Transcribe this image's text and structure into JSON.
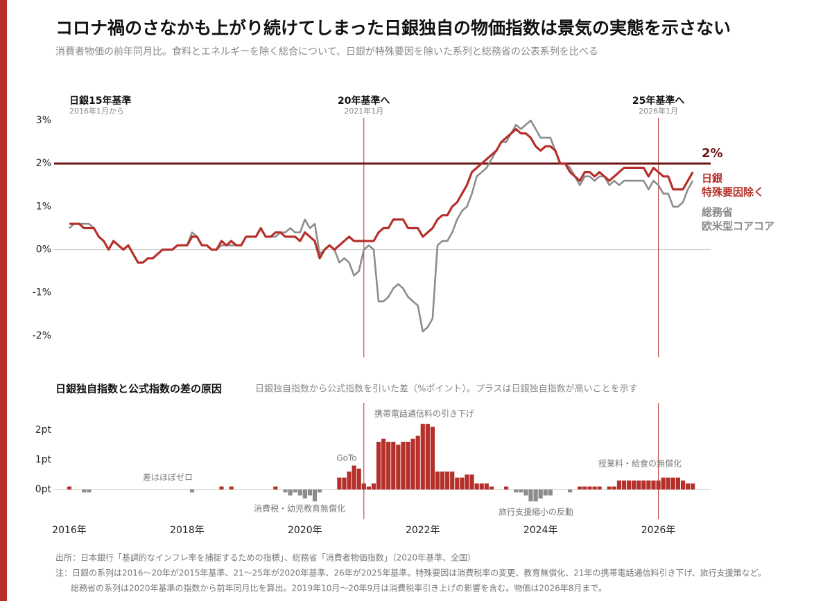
{
  "header": {
    "title": "コロナ禍のさなかも上がり続けてしまった日銀独自の物価指数は景気の実態を示さない",
    "subtitle": "消費者物価の前年同月比。食料とエネルギーを除く総合について、日銀が特殊要因を除いた系列と総務省の公表系列を比べる"
  },
  "chart_data": [
    {
      "type": "line",
      "ylim": [
        -2.5,
        3
      ],
      "yticks": [
        {
          "value": 3,
          "label": "3%"
        },
        {
          "value": 2,
          "label": "2%"
        },
        {
          "value": 1,
          "label": "1%"
        },
        {
          "value": 0,
          "label": "0%"
        },
        {
          "value": -1,
          "label": "-1%"
        },
        {
          "value": -2,
          "label": "-2%"
        }
      ],
      "hline": {
        "value": 2,
        "label": "2%",
        "color": "#6e1515"
      },
      "periods": [
        {
          "label": "日銀15年基準",
          "sub": "2016年1月から",
          "at": 0,
          "line": false
        },
        {
          "label": "20年基準へ",
          "sub": "2021年1月",
          "at": 60,
          "line": true
        },
        {
          "label": "25年基準へ",
          "sub": "2026年1月",
          "at": 120,
          "line": true
        }
      ],
      "series": [
        {
          "name": [
            "総務省",
            "欧米型コアコア"
          ],
          "color": "#8c8c8c",
          "values": [
            0.5,
            0.6,
            0.6,
            0.6,
            0.6,
            0.5,
            0.3,
            0.2,
            0.0,
            0.2,
            0.1,
            0.0,
            0.1,
            -0.1,
            -0.3,
            -0.3,
            -0.2,
            -0.2,
            -0.1,
            0.0,
            0.0,
            0.0,
            0.1,
            0.1,
            0.1,
            0.4,
            0.3,
            0.1,
            0.1,
            0.0,
            0.0,
            0.1,
            0.1,
            0.1,
            0.1,
            0.1,
            0.3,
            0.3,
            0.3,
            0.5,
            0.3,
            0.3,
            0.3,
            0.4,
            0.4,
            0.5,
            0.4,
            0.4,
            0.7,
            0.5,
            0.6,
            -0.1,
            0.0,
            0.1,
            0.0,
            -0.3,
            -0.2,
            -0.3,
            -0.6,
            -0.5,
            0.0,
            0.1,
            0.0,
            -1.2,
            -1.2,
            -1.1,
            -0.9,
            -0.8,
            -0.9,
            -1.1,
            -1.2,
            -1.3,
            -1.9,
            -1.8,
            -1.6,
            0.1,
            0.2,
            0.2,
            0.4,
            0.7,
            0.9,
            1.0,
            1.3,
            1.7,
            1.8,
            1.9,
            2.1,
            2.3,
            2.5,
            2.5,
            2.7,
            2.9,
            2.8,
            2.9,
            3.0,
            2.8,
            2.6,
            2.6,
            2.6,
            2.3,
            2.0,
            2.0,
            1.9,
            1.7,
            1.5,
            1.7,
            1.7,
            1.6,
            1.7,
            1.7,
            1.5,
            1.6,
            1.5,
            1.6,
            1.6,
            1.6,
            1.6,
            1.6,
            1.4,
            1.6,
            1.5,
            1.3,
            1.3,
            1.0,
            1.0,
            1.1,
            1.4,
            1.6
          ]
        },
        {
          "name": [
            "日銀",
            "特殊要因除く"
          ],
          "color": "#b5302a",
          "values": [
            0.6,
            0.6,
            0.6,
            0.5,
            0.5,
            0.5,
            0.3,
            0.2,
            0.0,
            0.2,
            0.1,
            0.0,
            0.1,
            -0.1,
            -0.3,
            -0.3,
            -0.2,
            -0.2,
            -0.1,
            0.0,
            0.0,
            0.0,
            0.1,
            0.1,
            0.1,
            0.3,
            0.3,
            0.1,
            0.1,
            0.0,
            0.0,
            0.2,
            0.1,
            0.2,
            0.1,
            0.1,
            0.3,
            0.3,
            0.3,
            0.5,
            0.3,
            0.3,
            0.4,
            0.4,
            0.3,
            0.3,
            0.3,
            0.2,
            0.4,
            0.3,
            0.2,
            -0.2,
            0.0,
            0.1,
            0.0,
            0.1,
            0.2,
            0.3,
            0.2,
            0.2,
            0.2,
            0.2,
            0.2,
            0.4,
            0.5,
            0.5,
            0.7,
            0.7,
            0.7,
            0.5,
            0.5,
            0.5,
            0.3,
            0.4,
            0.5,
            0.7,
            0.8,
            0.8,
            1.0,
            1.1,
            1.3,
            1.5,
            1.8,
            1.9,
            2.0,
            2.1,
            2.2,
            2.3,
            2.5,
            2.6,
            2.7,
            2.8,
            2.7,
            2.7,
            2.6,
            2.4,
            2.3,
            2.4,
            2.4,
            2.3,
            2.0,
            2.0,
            1.8,
            1.7,
            1.6,
            1.8,
            1.8,
            1.7,
            1.8,
            1.7,
            1.6,
            1.7,
            1.8,
            1.9,
            1.9,
            1.9,
            1.9,
            1.9,
            1.7,
            1.9,
            1.8,
            1.7,
            1.7,
            1.4,
            1.4,
            1.4,
            1.6,
            1.8
          ]
        }
      ]
    },
    {
      "type": "bar",
      "title": "日銀独自指数と公式指数の差の原因",
      "subtitle": "日銀独自指数から公式指数を引いた差（%ポイント）。プラスは日銀独自指数が高いことを示す",
      "ylim": [
        -1,
        2.9
      ],
      "yticks": [
        {
          "value": 0,
          "label": "0pt"
        },
        {
          "value": 1,
          "label": "1pt"
        },
        {
          "value": 2,
          "label": "2pt"
        }
      ],
      "vlines": [
        60,
        120
      ],
      "positive_color": "#b5302a",
      "negative_color": "#8c8c8c",
      "categories": [
        "2016年",
        null,
        null,
        null,
        null,
        null,
        null,
        null,
        null,
        null,
        null,
        null,
        null,
        null,
        null,
        null,
        null,
        null,
        null,
        null,
        null,
        null,
        null,
        null,
        "2018年",
        null,
        null,
        null,
        null,
        null,
        null,
        null,
        null,
        null,
        null,
        null,
        null,
        null,
        null,
        null,
        null,
        null,
        null,
        null,
        null,
        null,
        null,
        null,
        "2020年",
        null,
        null,
        null,
        null,
        null,
        null,
        null,
        null,
        null,
        null,
        null,
        null,
        null,
        null,
        null,
        null,
        null,
        null,
        null,
        null,
        null,
        null,
        null,
        "2022年",
        null,
        null,
        null,
        null,
        null,
        null,
        null,
        null,
        null,
        null,
        null,
        null,
        null,
        null,
        null,
        null,
        null,
        null,
        null,
        null,
        null,
        null,
        null,
        "2024年",
        null,
        null,
        null,
        null,
        null,
        null,
        null,
        null,
        null,
        null,
        null,
        null,
        null,
        null,
        null,
        null,
        null,
        null,
        null,
        null,
        null,
        null,
        null,
        "2026年",
        null,
        null,
        null,
        null,
        null,
        null,
        null
      ],
      "values": [
        0.1,
        0,
        0,
        -0.1,
        -0.1,
        0,
        0,
        0,
        0,
        0,
        0,
        0,
        0,
        0,
        0,
        0,
        0,
        0,
        0,
        0,
        0,
        0,
        0,
        0,
        0,
        -0.1,
        0,
        0,
        0,
        0,
        0,
        0.1,
        0,
        0.1,
        0,
        0,
        0,
        0,
        0,
        0,
        0,
        0,
        0.1,
        0,
        -0.1,
        -0.2,
        -0.1,
        -0.2,
        -0.3,
        -0.2,
        -0.4,
        -0.1,
        0,
        0,
        0,
        0.4,
        0.4,
        0.6,
        0.8,
        0.7,
        0.2,
        0.1,
        0.2,
        1.6,
        1.7,
        1.6,
        1.6,
        1.5,
        1.6,
        1.6,
        1.7,
        1.8,
        2.2,
        2.2,
        2.1,
        0.6,
        0.6,
        0.6,
        0.6,
        0.4,
        0.4,
        0.5,
        0.5,
        0.2,
        0.2,
        0.2,
        0.1,
        0,
        0,
        0.1,
        0,
        -0.1,
        -0.1,
        -0.2,
        -0.4,
        -0.4,
        -0.3,
        -0.2,
        -0.2,
        0,
        0,
        0,
        -0.1,
        0,
        0.1,
        0.1,
        0.1,
        0.1,
        0.1,
        0,
        0.1,
        0.1,
        0.3,
        0.3,
        0.3,
        0.3,
        0.3,
        0.3,
        0.3,
        0.3,
        0.3,
        0.4,
        0.4,
        0.4,
        0.4,
        0.3,
        0.2,
        0.2
      ],
      "annotations": [
        "差はほぼゼロ",
        "消費税・幼児教育無償化",
        "GoTo",
        "携帯電話通信料の引き下げ",
        "旅行支援縮小の反動",
        "授業料・給食の無償化"
      ]
    }
  ],
  "footer": [
    "出所：日本銀行「基調的なインフレ率を捕捉するための指標」、総務省「消費者物価指数」（2020年基準、全国）",
    "注：日銀の系列は2016〜20年が2015年基準、21〜25年が2020年基準、26年が2025年基準。特殊要因は消費税率の変更、教育無償化、21年の携帯電話通信料引き下げ、旅行支援策など。",
    "総務省の系列は2020年基準の指数から前年同月比を算出。2019年10月〜20年9月は消費税率引き上げの影響を含む。物価は2026年8月まで。"
  ]
}
